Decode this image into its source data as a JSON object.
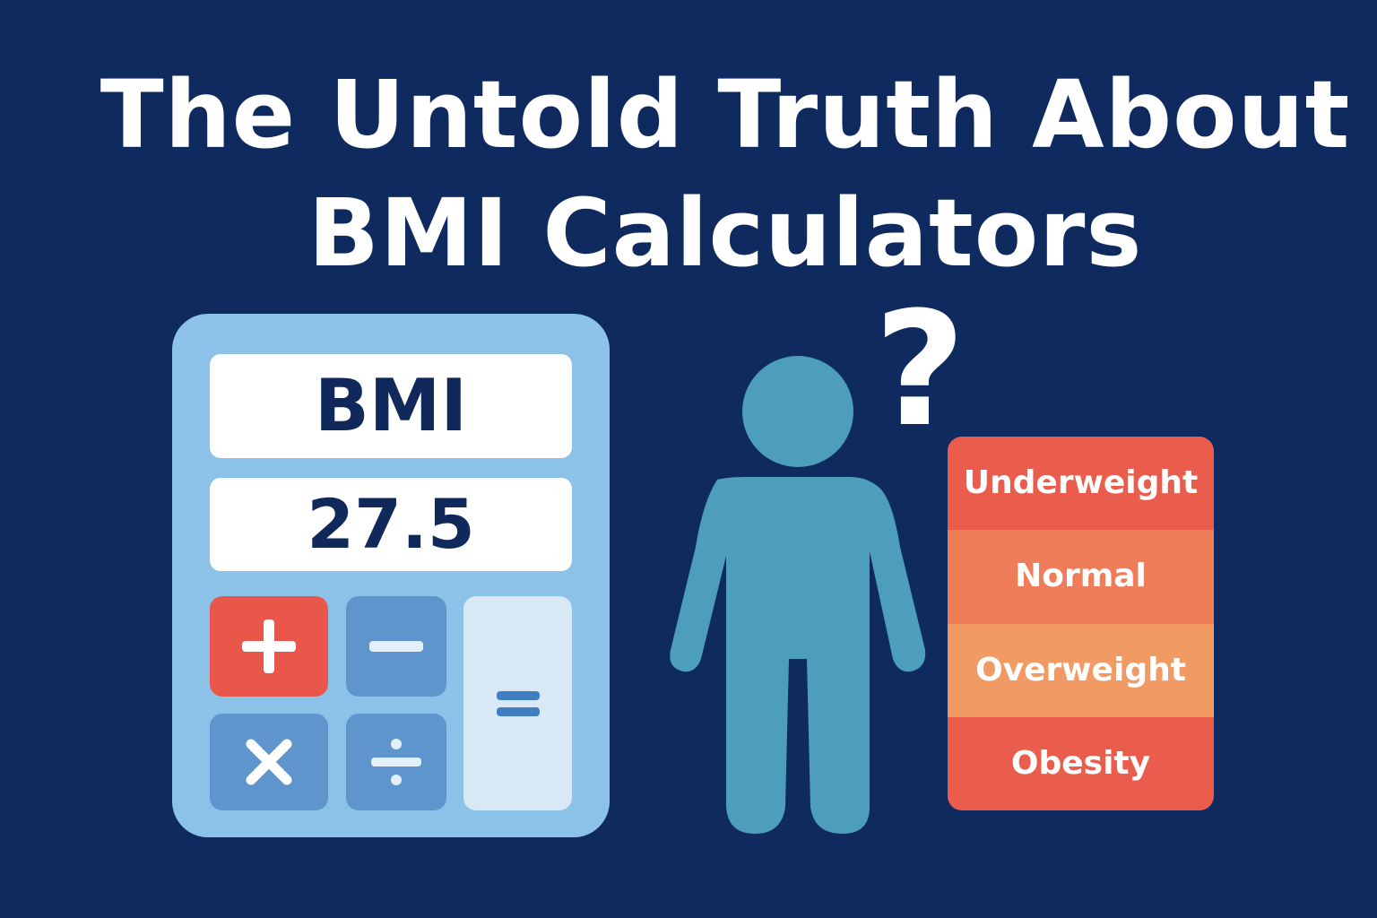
{
  "title": {
    "line1": "The Untold Truth About",
    "line2": "BMI Calculators"
  },
  "calculator": {
    "label": "BMI",
    "value": "27.5",
    "keys": [
      {
        "symbol": "+",
        "name": "plus"
      },
      {
        "symbol": "−",
        "name": "minus"
      },
      {
        "symbol": "×",
        "name": "times"
      },
      {
        "symbol": "÷",
        "name": "divide"
      },
      {
        "symbol": "=",
        "name": "equals"
      }
    ]
  },
  "question_mark": "?",
  "categories": [
    {
      "label": "Underweight",
      "color": "#ea5d4c"
    },
    {
      "label": "Normal",
      "color": "#ef7d59"
    },
    {
      "label": "Overweight",
      "color": "#f29a63"
    },
    {
      "label": "Obesity",
      "color": "#ea5d4c"
    }
  ],
  "colors": {
    "background": "#0f2a5f",
    "calculator_body": "#8cc1e8",
    "person": "#4c9ebb",
    "accent_red": "#e8574a"
  }
}
